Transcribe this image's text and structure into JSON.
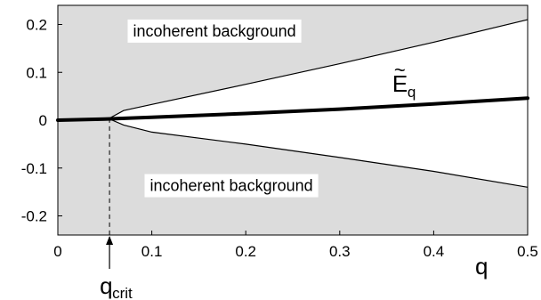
{
  "chart_data": {
    "type": "line",
    "title": "",
    "xlabel": "q",
    "ylabel": "",
    "xlim": [
      0,
      0.5
    ],
    "ylim": [
      -0.24,
      0.24
    ],
    "x_ticks": [
      0,
      0.1,
      0.2,
      0.3,
      0.4,
      0.5
    ],
    "x_tick_labels": [
      "0",
      "0.1",
      "0.2",
      "0.3",
      "0.4",
      "0.5"
    ],
    "y_ticks": [
      0.2,
      0.1,
      0,
      -0.1,
      -0.2
    ],
    "y_tick_labels": [
      "0.2",
      "0.1",
      "0",
      "-0.1",
      "-0.2"
    ],
    "grid": false,
    "colors": {
      "background_region": "#dcdcdc",
      "coherent_region": "#ffffff",
      "curve": "#000000",
      "axes": "#000000"
    },
    "series": [
      {
        "name": "",
        "role": "upper-boundary",
        "x": [
          0.055,
          0.07,
          0.1,
          0.2,
          0.3,
          0.4,
          0.5
        ],
        "y": [
          0.004,
          0.02,
          0.033,
          0.075,
          0.118,
          0.163,
          0.21
        ]
      },
      {
        "name": "",
        "role": "lower-boundary",
        "x": [
          0.055,
          0.07,
          0.1,
          0.2,
          0.3,
          0.4,
          0.5
        ],
        "y": [
          0.0025,
          -0.01,
          -0.025,
          -0.05,
          -0.078,
          -0.107,
          -0.14
        ]
      },
      {
        "name": "",
        "role": "dispersion",
        "x": [
          0,
          0.05,
          0.1,
          0.2,
          0.3,
          0.4,
          0.5
        ],
        "y": [
          0,
          0.0025,
          0.006,
          0.014,
          0.023,
          0.034,
          0.046
        ]
      }
    ],
    "annotations": {
      "upper_region": {
        "text": "incoherent background",
        "x": 0.08,
        "y": 0.175
      },
      "lower_region": {
        "text": "incoherent background",
        "x": 0.098,
        "y": -0.148
      },
      "dispersion_label": {
        "base": "E",
        "accent": "~",
        "subscript": "q",
        "x": 0.356,
        "y": 0.06
      },
      "critical_point": {
        "base": "q",
        "subscript": "crit",
        "x": 0.055
      }
    }
  }
}
